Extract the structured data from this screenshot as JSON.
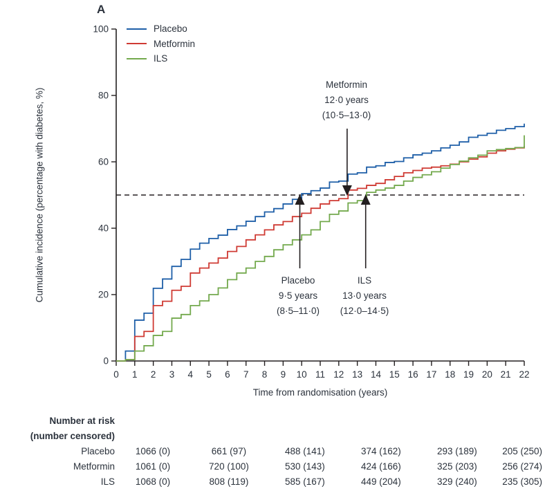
{
  "figure": {
    "panel_label": "A"
  },
  "chart_data": {
    "type": "line",
    "subtype": "step-function-cumulative-incidence",
    "title": "",
    "xlabel": "Time from randomisation (years)",
    "ylabel": "Cumulative incidence (percentage with diabetes, %)",
    "x_min": 0,
    "x_max": 22,
    "x_tick_step": 1,
    "y_min": 0,
    "y_max": 100,
    "y_tick_step": 20,
    "grid": "off",
    "legend_position": "top-left",
    "axis_color": "#231f20",
    "text_color": "#2b323c",
    "reference_line": {
      "y": 50,
      "style": "dashed"
    },
    "x": [
      0,
      0.5,
      1,
      1.5,
      2,
      2.5,
      3,
      3.5,
      4,
      4.5,
      5,
      5.5,
      6,
      6.5,
      7,
      7.5,
      8,
      8.5,
      9,
      9.5,
      10,
      10.5,
      11,
      11.5,
      12,
      12.5,
      13,
      13.5,
      14,
      14.5,
      15,
      15.5,
      16,
      16.5,
      17,
      17.5,
      18,
      18.5,
      19,
      19.5,
      20,
      20.5,
      21,
      21.5,
      22
    ],
    "series": [
      {
        "name": "Placebo",
        "color": "#1e5fa8",
        "values": [
          0,
          3,
          12.3,
          14.4,
          21.9,
          24.7,
          28.5,
          30.6,
          33.7,
          35.5,
          36.9,
          37.9,
          39.6,
          40.7,
          42.1,
          43.5,
          44.9,
          45.9,
          47.3,
          48.7,
          50.4,
          51.3,
          52.1,
          53.9,
          54.2,
          56.3,
          56.7,
          58.4,
          58.8,
          59.8,
          60.1,
          61.2,
          62.1,
          62.6,
          63.3,
          64.2,
          65.0,
          66.0,
          67.4,
          68.0,
          68.6,
          69.5,
          70.0,
          70.6,
          71.5
        ]
      },
      {
        "name": "Metformin",
        "color": "#cf3a33",
        "values": [
          0,
          0.4,
          7.4,
          8.9,
          16.7,
          18.0,
          21.3,
          22.5,
          26.5,
          28.0,
          29.5,
          31.0,
          33.0,
          34.5,
          36.5,
          38.0,
          39.5,
          41.0,
          42.0,
          43.5,
          44.5,
          46.0,
          47.3,
          48.3,
          48.9,
          51.5,
          52.0,
          52.9,
          53.5,
          54.6,
          55.6,
          56.7,
          57.4,
          58.1,
          58.4,
          58.8,
          59.3,
          60.0,
          60.8,
          61.5,
          62.6,
          63.3,
          63.8,
          64.2,
          64.8
        ]
      },
      {
        "name": "ILS",
        "color": "#73a94d",
        "values": [
          0,
          0.4,
          3.0,
          4.6,
          7.7,
          8.9,
          12.9,
          14.0,
          16.7,
          18.1,
          20.0,
          22.0,
          24.5,
          26.5,
          28.0,
          30.0,
          31.5,
          33.5,
          35.0,
          36.5,
          38.0,
          39.5,
          42.0,
          44.2,
          45.2,
          47.6,
          48.3,
          50.8,
          51.5,
          52.1,
          52.9,
          54.2,
          55.3,
          56.1,
          57.0,
          58.1,
          59.2,
          60.2,
          61.2,
          62.0,
          63.3,
          63.7,
          64.0,
          64.3,
          68.0
        ]
      }
    ]
  },
  "annotations": [
    {
      "id": "metformin",
      "line1": "Metformin",
      "line2": "12·0 years",
      "line3": "(10·5–13·0)",
      "pointer_year": 12.45,
      "pointer_direction": "down"
    },
    {
      "id": "placebo",
      "line1": "Placebo",
      "line2": "9·5 years",
      "line3": "(8·5–11·0)",
      "pointer_year": 9.9,
      "pointer_direction": "up"
    },
    {
      "id": "ils",
      "line1": "ILS",
      "line2": "13·0 years",
      "line3": "(12·0–14·5)",
      "pointer_year": 13.45,
      "pointer_direction": "up"
    }
  ],
  "risk_table": {
    "header_line1": "Number at risk",
    "header_line2": "(number censored)",
    "rows": [
      {
        "label": "Placebo",
        "values": [
          "1066 (0)",
          "661 (97)",
          "488 (141)",
          "374 (162)",
          "293 (189)",
          "205 (250)"
        ]
      },
      {
        "label": "Metformin",
        "values": [
          "1061 (0)",
          "720 (100)",
          "530 (143)",
          "424 (166)",
          "325 (203)",
          "256 (274)"
        ]
      },
      {
        "label": "ILS",
        "values": [
          "1068 (0)",
          "808 (119)",
          "585 (167)",
          "449 (204)",
          "329 (240)",
          "235 (305)"
        ]
      }
    ]
  }
}
